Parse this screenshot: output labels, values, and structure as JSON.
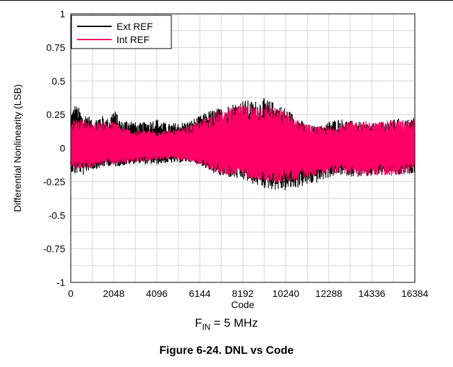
{
  "chart_data": {
    "type": "line",
    "title": "",
    "xlabel": "Code",
    "ylabel": "Differential Nonlinearity (LSB)",
    "xlim": [
      0,
      16384
    ],
    "ylim": [
      -1,
      1
    ],
    "x_ticks": [
      0,
      2048,
      4096,
      6144,
      8192,
      10240,
      12288,
      14336,
      16384
    ],
    "x_tick_labels": [
      "0",
      "2048",
      "4096",
      "6144",
      "8192",
      "10240",
      "12288",
      "14336",
      "16384"
    ],
    "y_ticks": [
      1,
      0.75,
      0.5,
      0.25,
      0,
      -0.25,
      -0.5,
      -0.75,
      -1
    ],
    "y_tick_labels": [
      "1",
      "0.75",
      "0.5",
      "0.25",
      "0",
      "-0.25",
      "-0.5",
      "-0.75",
      "-1"
    ],
    "grid": true,
    "legend_position": "top-left",
    "x_extent": [
      16,
      16368
    ],
    "series": [
      {
        "name": "Ext REF",
        "color": "#000000",
        "envelope_x": [
          16,
          200,
          400,
          600,
          800,
          1000,
          1400,
          1800,
          2048,
          2400,
          2800,
          3200,
          3600,
          4096,
          4600,
          5100,
          5600,
          6144,
          6600,
          7100,
          7600,
          8192,
          8700,
          9200,
          9700,
          10240,
          10700,
          11200,
          11700,
          12000,
          12288,
          12800,
          13400,
          14000,
          14336,
          15000,
          15600,
          16000,
          16368
        ],
        "upper": [
          0.28,
          0.33,
          0.3,
          0.24,
          0.27,
          0.2,
          0.25,
          0.22,
          0.3,
          0.2,
          0.22,
          0.18,
          0.2,
          0.22,
          0.18,
          0.19,
          0.2,
          0.24,
          0.28,
          0.3,
          0.33,
          0.36,
          0.35,
          0.37,
          0.34,
          0.3,
          0.24,
          0.18,
          0.16,
          0.17,
          0.2,
          0.22,
          0.2,
          0.19,
          0.18,
          0.2,
          0.22,
          0.21,
          0.24
        ],
        "lower": [
          -0.17,
          -0.2,
          -0.18,
          -0.2,
          -0.17,
          -0.16,
          -0.15,
          -0.13,
          -0.14,
          -0.13,
          -0.12,
          -0.11,
          -0.12,
          -0.12,
          -0.11,
          -0.11,
          -0.1,
          -0.12,
          -0.17,
          -0.21,
          -0.22,
          -0.24,
          -0.27,
          -0.3,
          -0.31,
          -0.32,
          -0.3,
          -0.28,
          -0.26,
          -0.24,
          -0.22,
          -0.2,
          -0.21,
          -0.22,
          -0.21,
          -0.2,
          -0.21,
          -0.2,
          -0.18
        ]
      },
      {
        "name": "Int REF",
        "color": "#ff0066",
        "envelope_x": [
          16,
          400,
          800,
          1200,
          1600,
          2048,
          2600,
          3200,
          4096,
          4600,
          5100,
          5600,
          6144,
          6600,
          7100,
          7600,
          8192,
          8700,
          9200,
          9700,
          10240,
          10700,
          11200,
          11600,
          12288,
          12800,
          13400,
          14000,
          14336,
          15000,
          15600,
          16000,
          16368
        ],
        "upper": [
          0.2,
          0.22,
          0.2,
          0.19,
          0.2,
          0.2,
          0.15,
          0.13,
          0.14,
          0.13,
          0.14,
          0.16,
          0.2,
          0.25,
          0.28,
          0.3,
          0.32,
          0.32,
          0.34,
          0.3,
          0.28,
          0.22,
          0.18,
          0.16,
          0.16,
          0.18,
          0.2,
          0.2,
          0.19,
          0.2,
          0.21,
          0.2,
          0.22
        ],
        "lower": [
          -0.14,
          -0.16,
          -0.15,
          -0.13,
          -0.12,
          -0.12,
          -0.11,
          -0.1,
          -0.09,
          -0.08,
          -0.09,
          -0.1,
          -0.12,
          -0.16,
          -0.19,
          -0.2,
          -0.21,
          -0.23,
          -0.25,
          -0.26,
          -0.25,
          -0.24,
          -0.22,
          -0.2,
          -0.19,
          -0.18,
          -0.2,
          -0.21,
          -0.2,
          -0.21,
          -0.2,
          -0.19,
          -0.17
        ]
      }
    ]
  },
  "annotation": {
    "symbol": "F",
    "subscript": "IN",
    "text": " = 5 MHz"
  },
  "caption": "Figure 6-24. DNL vs Code"
}
